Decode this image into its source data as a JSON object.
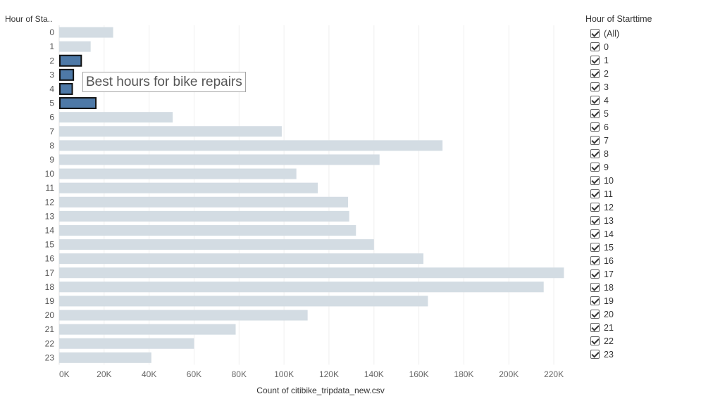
{
  "chart_data": {
    "type": "bar",
    "orientation": "horizontal",
    "row_header": "Hour of Sta..",
    "xlabel": "Count of citibike_tripdata_new.csv",
    "categories": [
      "0",
      "1",
      "2",
      "3",
      "4",
      "5",
      "6",
      "7",
      "8",
      "9",
      "10",
      "11",
      "12",
      "13",
      "14",
      "15",
      "16",
      "17",
      "18",
      "19",
      "20",
      "21",
      "22",
      "23"
    ],
    "values": [
      24000,
      14000,
      9500,
      6000,
      5500,
      16000,
      50500,
      99000,
      170500,
      142500,
      105500,
      115000,
      128500,
      129000,
      132000,
      140000,
      162000,
      224500,
      215500,
      164000,
      110500,
      78500,
      60000,
      41000
    ],
    "highlighted": [
      "2",
      "3",
      "4",
      "5"
    ],
    "xlim": [
      0,
      230000
    ],
    "xticks": [
      "0K",
      "20K",
      "40K",
      "60K",
      "80K",
      "100K",
      "120K",
      "140K",
      "160K",
      "180K",
      "200K",
      "220K"
    ],
    "annotation": "Best hours for bike repairs",
    "grid": true,
    "colors": {
      "bar": "#d3dce3",
      "highlight": "#4e79a7",
      "highlight_border": "#111111"
    }
  },
  "filter": {
    "title": "Hour of Starttime",
    "options": [
      "(All)",
      "0",
      "1",
      "2",
      "3",
      "4",
      "5",
      "6",
      "7",
      "8",
      "9",
      "10",
      "11",
      "12",
      "13",
      "14",
      "15",
      "16",
      "17",
      "18",
      "19",
      "20",
      "21",
      "22",
      "23"
    ]
  }
}
